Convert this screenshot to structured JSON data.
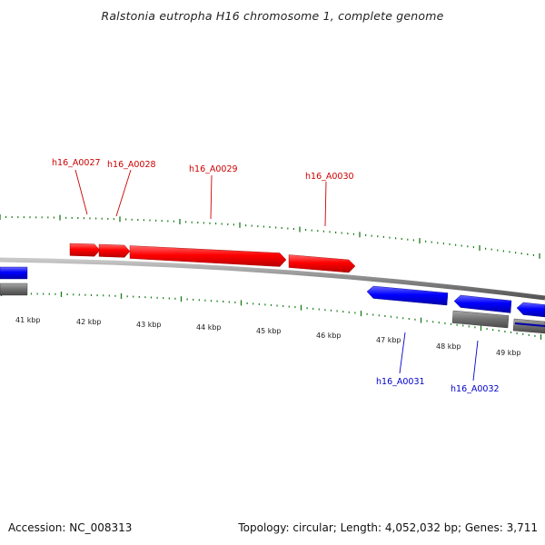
{
  "title": "Ralstonia eutropha H16 chromosome 1, complete genome",
  "footer": {
    "accession": "Accession: NC_008313",
    "stats": "Topology: circular; Length: 4,052,032 bp; Genes: 3,711"
  },
  "colors": {
    "forward_gene": "#ff0000",
    "reverse_gene": "#0000ff",
    "backbone": "#8a8a8a",
    "tick": "#1a7a1a",
    "forward_label": "#cc0000",
    "reverse_label": "#0000cc",
    "pseudo_gene": "#707070"
  },
  "scale": {
    "unit": "kbp",
    "labels": [
      "41 kbp",
      "42 kbp",
      "43 kbp",
      "44 kbp",
      "45 kbp",
      "46 kbp",
      "47 kbp",
      "48 kbp",
      "49 kbp"
    ]
  },
  "genes": {
    "forward": [
      {
        "name": "h16_A0027"
      },
      {
        "name": "h16_A0028"
      },
      {
        "name": "h16_A0029"
      },
      {
        "name": "h16_A0030"
      }
    ],
    "reverse": [
      {
        "name": "h16_A0031"
      },
      {
        "name": "h16_A0032"
      }
    ]
  }
}
